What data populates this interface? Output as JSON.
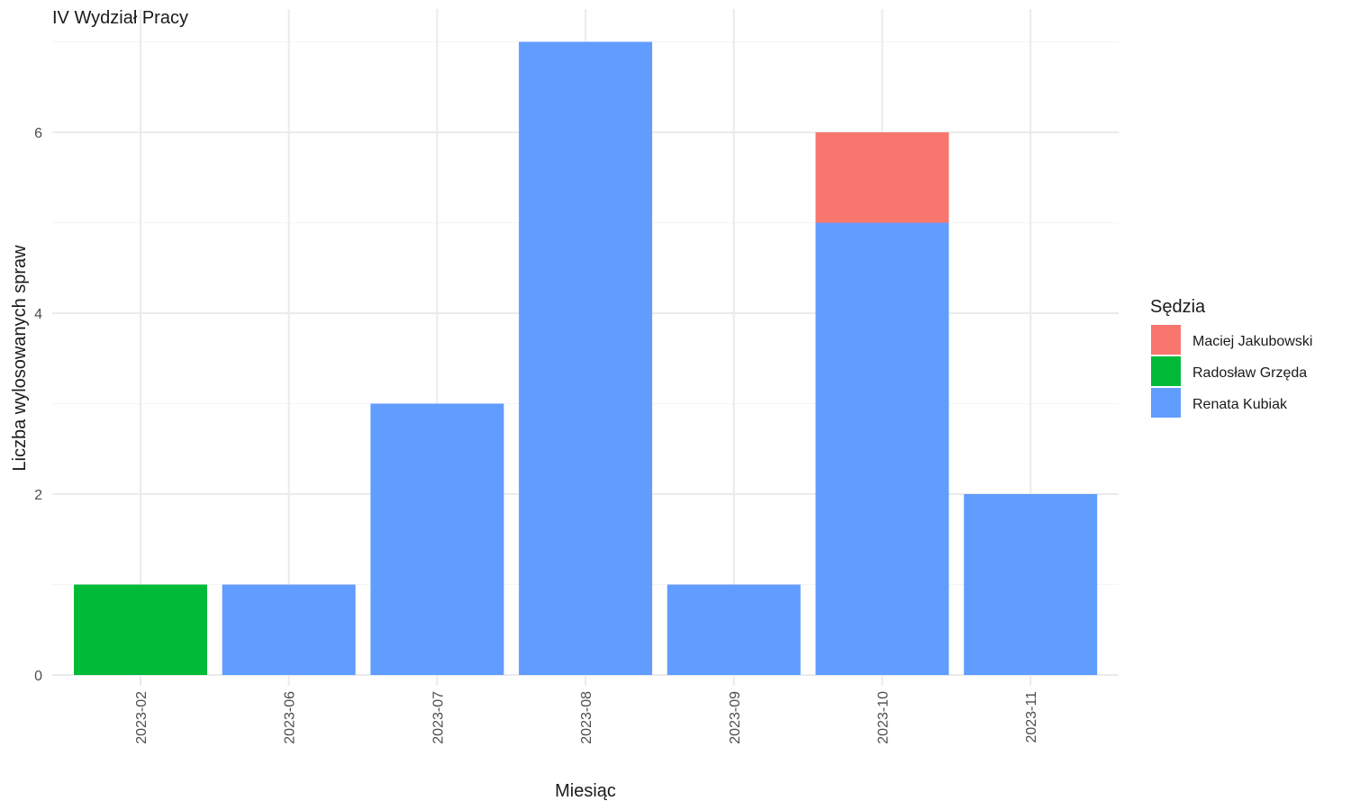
{
  "chart_data": {
    "type": "bar",
    "stacked": true,
    "title": "IV Wydział Pracy",
    "xlabel": "Miesiąc",
    "ylabel": "Liczba wylosowanych spraw",
    "categories": [
      "2023-02",
      "2023-06",
      "2023-07",
      "2023-08",
      "2023-09",
      "2023-10",
      "2023-11"
    ],
    "series": [
      {
        "name": "Renata Kubiak",
        "color": "#619CFF",
        "values": [
          0,
          1,
          3,
          7,
          1,
          5,
          2
        ]
      },
      {
        "name": "Radosław Grzęda",
        "color": "#00BA38",
        "values": [
          1,
          0,
          0,
          0,
          0,
          0,
          0
        ]
      },
      {
        "name": "Maciej Jakubowski",
        "color": "#F8766D",
        "values": [
          0,
          0,
          0,
          0,
          0,
          1,
          0
        ]
      }
    ],
    "ylim": [
      0,
      7
    ],
    "yticks": [
      0,
      2,
      4,
      6
    ],
    "grid": true,
    "legend": {
      "title": "Sędzia",
      "position": "right",
      "entries": [
        {
          "label": "Maciej Jakubowski",
          "color": "#F8766D"
        },
        {
          "label": "Radosław Grzęda",
          "color": "#00BA38"
        },
        {
          "label": "Renata Kubiak",
          "color": "#619CFF"
        }
      ]
    }
  }
}
